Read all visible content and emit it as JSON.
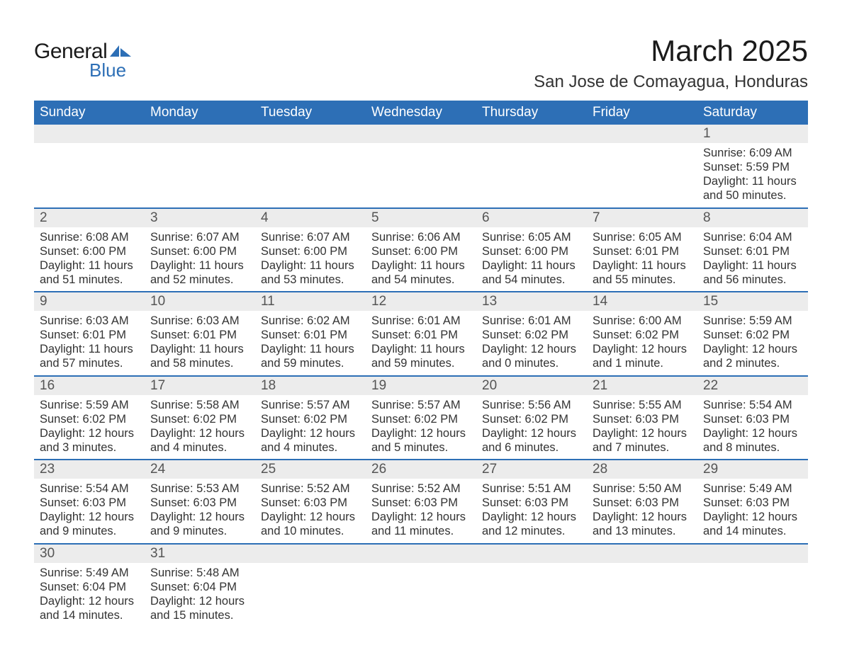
{
  "brand": {
    "general": "General",
    "blue": "Blue",
    "logo_color": "#2d6fb6"
  },
  "title": "March 2025",
  "location": "San Jose de Comayagua, Honduras",
  "colors": {
    "header_bg": "#2d6fb6",
    "header_text": "#ffffff",
    "daynum_bg": "#ececec",
    "daynum_text": "#555555",
    "body_text": "#333333",
    "row_border": "#2d6fb6",
    "page_bg": "#ffffff"
  },
  "typography": {
    "title_fontsize": 42,
    "location_fontsize": 24,
    "header_fontsize": 19,
    "daynum_fontsize": 19,
    "cell_fontsize": 16.5
  },
  "layout": {
    "columns": 7,
    "first_day_column_index": 6
  },
  "day_headers": [
    "Sunday",
    "Monday",
    "Tuesday",
    "Wednesday",
    "Thursday",
    "Friday",
    "Saturday"
  ],
  "labels": {
    "sunrise": "Sunrise:",
    "sunset": "Sunset:",
    "daylight_prefix": "Daylight:"
  },
  "days": [
    {
      "n": 1,
      "sunrise": "6:09 AM",
      "sunset": "5:59 PM",
      "daylight": "11 hours and 50 minutes."
    },
    {
      "n": 2,
      "sunrise": "6:08 AM",
      "sunset": "6:00 PM",
      "daylight": "11 hours and 51 minutes."
    },
    {
      "n": 3,
      "sunrise": "6:07 AM",
      "sunset": "6:00 PM",
      "daylight": "11 hours and 52 minutes."
    },
    {
      "n": 4,
      "sunrise": "6:07 AM",
      "sunset": "6:00 PM",
      "daylight": "11 hours and 53 minutes."
    },
    {
      "n": 5,
      "sunrise": "6:06 AM",
      "sunset": "6:00 PM",
      "daylight": "11 hours and 54 minutes."
    },
    {
      "n": 6,
      "sunrise": "6:05 AM",
      "sunset": "6:00 PM",
      "daylight": "11 hours and 54 minutes."
    },
    {
      "n": 7,
      "sunrise": "6:05 AM",
      "sunset": "6:01 PM",
      "daylight": "11 hours and 55 minutes."
    },
    {
      "n": 8,
      "sunrise": "6:04 AM",
      "sunset": "6:01 PM",
      "daylight": "11 hours and 56 minutes."
    },
    {
      "n": 9,
      "sunrise": "6:03 AM",
      "sunset": "6:01 PM",
      "daylight": "11 hours and 57 minutes."
    },
    {
      "n": 10,
      "sunrise": "6:03 AM",
      "sunset": "6:01 PM",
      "daylight": "11 hours and 58 minutes."
    },
    {
      "n": 11,
      "sunrise": "6:02 AM",
      "sunset": "6:01 PM",
      "daylight": "11 hours and 59 minutes."
    },
    {
      "n": 12,
      "sunrise": "6:01 AM",
      "sunset": "6:01 PM",
      "daylight": "11 hours and 59 minutes."
    },
    {
      "n": 13,
      "sunrise": "6:01 AM",
      "sunset": "6:02 PM",
      "daylight": "12 hours and 0 minutes."
    },
    {
      "n": 14,
      "sunrise": "6:00 AM",
      "sunset": "6:02 PM",
      "daylight": "12 hours and 1 minute."
    },
    {
      "n": 15,
      "sunrise": "5:59 AM",
      "sunset": "6:02 PM",
      "daylight": "12 hours and 2 minutes."
    },
    {
      "n": 16,
      "sunrise": "5:59 AM",
      "sunset": "6:02 PM",
      "daylight": "12 hours and 3 minutes."
    },
    {
      "n": 17,
      "sunrise": "5:58 AM",
      "sunset": "6:02 PM",
      "daylight": "12 hours and 4 minutes."
    },
    {
      "n": 18,
      "sunrise": "5:57 AM",
      "sunset": "6:02 PM",
      "daylight": "12 hours and 4 minutes."
    },
    {
      "n": 19,
      "sunrise": "5:57 AM",
      "sunset": "6:02 PM",
      "daylight": "12 hours and 5 minutes."
    },
    {
      "n": 20,
      "sunrise": "5:56 AM",
      "sunset": "6:02 PM",
      "daylight": "12 hours and 6 minutes."
    },
    {
      "n": 21,
      "sunrise": "5:55 AM",
      "sunset": "6:03 PM",
      "daylight": "12 hours and 7 minutes."
    },
    {
      "n": 22,
      "sunrise": "5:54 AM",
      "sunset": "6:03 PM",
      "daylight": "12 hours and 8 minutes."
    },
    {
      "n": 23,
      "sunrise": "5:54 AM",
      "sunset": "6:03 PM",
      "daylight": "12 hours and 9 minutes."
    },
    {
      "n": 24,
      "sunrise": "5:53 AM",
      "sunset": "6:03 PM",
      "daylight": "12 hours and 9 minutes."
    },
    {
      "n": 25,
      "sunrise": "5:52 AM",
      "sunset": "6:03 PM",
      "daylight": "12 hours and 10 minutes."
    },
    {
      "n": 26,
      "sunrise": "5:52 AM",
      "sunset": "6:03 PM",
      "daylight": "12 hours and 11 minutes."
    },
    {
      "n": 27,
      "sunrise": "5:51 AM",
      "sunset": "6:03 PM",
      "daylight": "12 hours and 12 minutes."
    },
    {
      "n": 28,
      "sunrise": "5:50 AM",
      "sunset": "6:03 PM",
      "daylight": "12 hours and 13 minutes."
    },
    {
      "n": 29,
      "sunrise": "5:49 AM",
      "sunset": "6:03 PM",
      "daylight": "12 hours and 14 minutes."
    },
    {
      "n": 30,
      "sunrise": "5:49 AM",
      "sunset": "6:04 PM",
      "daylight": "12 hours and 14 minutes."
    },
    {
      "n": 31,
      "sunrise": "5:48 AM",
      "sunset": "6:04 PM",
      "daylight": "12 hours and 15 minutes."
    }
  ]
}
